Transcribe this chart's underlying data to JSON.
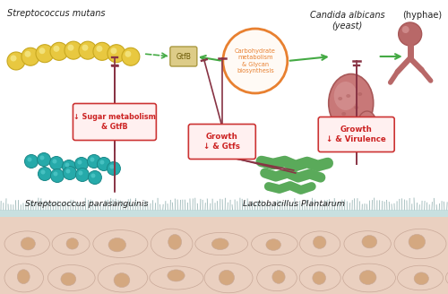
{
  "bg_color": "#ffffff",
  "smutans_label": "Streptococcus mutans",
  "candida_label": "Candida albicans\n(yeast)",
  "hyphae_label": "(hyphae)",
  "sparasanguinis_label": "Streptococcus parasanguinis",
  "lplantarum_label": "Lactobacillus Plantarum",
  "gtfb_label": "GtfB",
  "carb_label": "Carbohydrate\nmetabolism\n& Glycan\nbiosynthesis",
  "box1_label": "↓ Sugar metabolism\n& GtfB",
  "box2_label": "Growth\n↓ & Gtfs",
  "box3_label": "Growth\n↓ & Virulence",
  "smutans_color": "#E8C840",
  "smutans_dark": "#C8A820",
  "candida_body": "#C87878",
  "candida_dark": "#A85858",
  "candida_light": "#D89898",
  "hyphae_color": "#B86868",
  "sparasanguinis_color": "#26AAAA",
  "sparasanguinis_dark": "#1A8888",
  "lplantarum_color": "#5AAA5A",
  "lplantarum_dark": "#3A8A3A",
  "carb_circle_color": "#E88030",
  "carb_text_color": "#E88030",
  "arrow_green": "#44AA44",
  "arrow_inhibit": "#883344",
  "box_fill": "#FFF0F0",
  "box_edge": "#CC3333",
  "box_text": "#CC2222",
  "gtfb_color": "#DDCC88",
  "gtfb_edge": "#AA9940",
  "tissue_top_color": "#C8E0E0",
  "tissue_cilia_color": "#A8C0C0",
  "tissue_cell_color": "#EAD0C0",
  "tissue_cell_edge": "#C8A898",
  "tissue_nucleus_color": "#D4A880"
}
